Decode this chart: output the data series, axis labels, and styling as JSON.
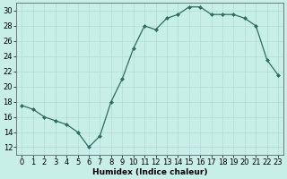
{
  "x": [
    0,
    1,
    2,
    3,
    4,
    5,
    6,
    7,
    8,
    9,
    10,
    11,
    12,
    13,
    14,
    15,
    16,
    17,
    18,
    19,
    20,
    21,
    22,
    23
  ],
  "y": [
    17.5,
    17,
    16,
    15.5,
    15,
    14,
    12,
    13.5,
    18,
    21,
    25,
    28,
    27.5,
    29,
    29.5,
    30.5,
    30.5,
    29.5,
    29.5,
    29.5,
    29,
    28,
    23.5,
    21.5
  ],
  "line_color": "#2e6e5e",
  "marker_color": "#2e6e5e",
  "bg_color": "#c8eee8",
  "grid_color": "#b0ddd6",
  "xlabel": "Humidex (Indice chaleur)",
  "xlim": [
    -0.5,
    23.5
  ],
  "ylim": [
    11,
    31
  ],
  "yticks": [
    12,
    14,
    16,
    18,
    20,
    22,
    24,
    26,
    28,
    30
  ],
  "xticks": [
    0,
    1,
    2,
    3,
    4,
    5,
    6,
    7,
    8,
    9,
    10,
    11,
    12,
    13,
    14,
    15,
    16,
    17,
    18,
    19,
    20,
    21,
    22,
    23
  ],
  "xlabel_fontsize": 6.5,
  "tick_fontsize": 6.0
}
